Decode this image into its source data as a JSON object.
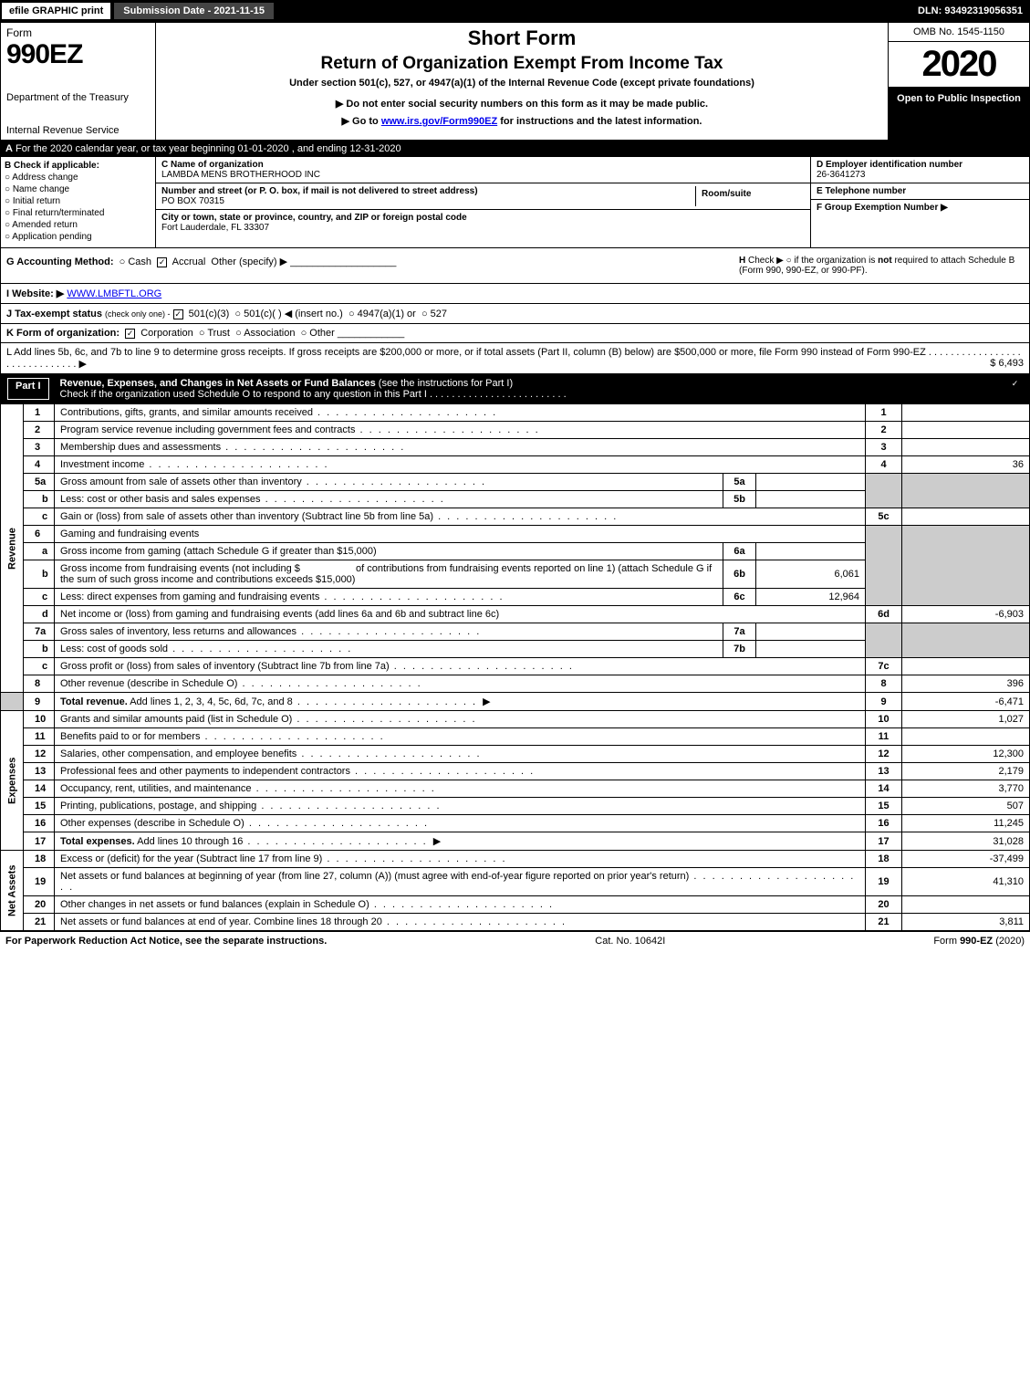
{
  "topbar": {
    "efile": "efile GRAPHIC print",
    "subdate": "Submission Date - 2021-11-15",
    "dln": "DLN: 93492319056351"
  },
  "header": {
    "form_label": "Form",
    "form_number": "990EZ",
    "dept1": "Department of the Treasury",
    "dept2": "Internal Revenue Service",
    "short_form": "Short Form",
    "title": "Return of Organization Exempt From Income Tax",
    "subtitle": "Under section 501(c), 527, or 4947(a)(1) of the Internal Revenue Code (except private foundations)",
    "note": "▶ Do not enter social security numbers on this form as it may be made public.",
    "goto_pre": "▶ Go to ",
    "goto_link": "www.irs.gov/Form990EZ",
    "goto_post": " for instructions and the latest information.",
    "omb": "OMB No. 1545-1150",
    "year": "2020",
    "open": "Open to Public Inspection"
  },
  "row_a": {
    "label": "A",
    "text": "For the 2020 calendar year, or tax year beginning 01-01-2020 , and ending 12-31-2020"
  },
  "section_b": {
    "label": "B",
    "check": "Check if applicable:",
    "items": [
      "Address change",
      "Name change",
      "Initial return",
      "Final return/terminated",
      "Amended return",
      "Application pending"
    ]
  },
  "section_c": {
    "name_label": "C Name of organization",
    "name_value": "LAMBDA MENS BROTHERHOOD INC",
    "addr_label": "Number and street (or P. O. box, if mail is not delivered to street address)",
    "addr_value": "PO BOX 70315",
    "room_label": "Room/suite",
    "city_label": "City or town, state or province, country, and ZIP or foreign postal code",
    "city_value": "Fort Lauderdale, FL  33307"
  },
  "section_def": {
    "d_label": "D Employer identification number",
    "d_value": "26-3641273",
    "e_label": "E Telephone number",
    "e_value": "",
    "f_label": "F Group Exemption Number  ▶",
    "f_value": ""
  },
  "row_g": {
    "label": "G Accounting Method:",
    "cash": "Cash",
    "accrual": "Accrual",
    "other": "Other (specify) ▶"
  },
  "row_h": {
    "label": "H",
    "text1": "Check ▶  ○  if the organization is ",
    "not": "not",
    "text2": " required to attach Schedule B (Form 990, 990-EZ, or 990-PF)."
  },
  "row_i": {
    "label": "I Website: ▶",
    "value": "WWW.LMBFTL.ORG"
  },
  "row_j": {
    "label": "J Tax-exempt status",
    "sub": "(check only one) -",
    "opt1": "501(c)(3)",
    "opt2": "501(c)(  ) ◀ (insert no.)",
    "opt3": "4947(a)(1) or",
    "opt4": "527"
  },
  "row_k": {
    "label": "K Form of organization:",
    "opt1": "Corporation",
    "opt2": "Trust",
    "opt3": "Association",
    "opt4": "Other"
  },
  "row_l": {
    "text": "L Add lines 5b, 6c, and 7b to line 9 to determine gross receipts. If gross receipts are $200,000 or more, or if total assets (Part II, column (B) below) are $500,000 or more, file Form 990 instead of Form 990-EZ",
    "dots": ". . . . . . . . . . . . . . . . . . . . . . . . . . . . . .",
    "arrow": "▶",
    "amount": "$ 6,493"
  },
  "part1": {
    "label": "Part I",
    "title": "Revenue, Expenses, and Changes in Net Assets or Fund Balances",
    "subtitle": "(see the instructions for Part I)",
    "check_text": "Check if the organization used Schedule O to respond to any question in this Part I",
    "dots": ". . . . . . . . . . . . . . . . . . . . . . . . ."
  },
  "revenue_label": "Revenue",
  "expenses_label": "Expenses",
  "netassets_label": "Net Assets",
  "lines": {
    "l1": {
      "no": "1",
      "desc": "Contributions, gifts, grants, and similar amounts received",
      "fno": "1",
      "fval": ""
    },
    "l2": {
      "no": "2",
      "desc": "Program service revenue including government fees and contracts",
      "fno": "2",
      "fval": ""
    },
    "l3": {
      "no": "3",
      "desc": "Membership dues and assessments",
      "fno": "3",
      "fval": ""
    },
    "l4": {
      "no": "4",
      "desc": "Investment income",
      "fno": "4",
      "fval": "36"
    },
    "l5a": {
      "no": "5a",
      "desc": "Gross amount from sale of assets other than inventory",
      "ino": "5a",
      "ival": ""
    },
    "l5b": {
      "no": "b",
      "desc": "Less: cost or other basis and sales expenses",
      "ino": "5b",
      "ival": ""
    },
    "l5c": {
      "no": "c",
      "desc": "Gain or (loss) from sale of assets other than inventory (Subtract line 5b from line 5a)",
      "fno": "5c",
      "fval": ""
    },
    "l6": {
      "no": "6",
      "desc": "Gaming and fundraising events"
    },
    "l6a": {
      "no": "a",
      "desc": "Gross income from gaming (attach Schedule G if greater than $15,000)",
      "ino": "6a",
      "ival": ""
    },
    "l6b": {
      "no": "b",
      "desc1": "Gross income from fundraising events (not including $",
      "desc2": "of contributions from fundraising events reported on line 1) (attach Schedule G if the sum of such gross income and contributions exceeds $15,000)",
      "ino": "6b",
      "ival": "6,061"
    },
    "l6c": {
      "no": "c",
      "desc": "Less: direct expenses from gaming and fundraising events",
      "ino": "6c",
      "ival": "12,964"
    },
    "l6d": {
      "no": "d",
      "desc": "Net income or (loss) from gaming and fundraising events (add lines 6a and 6b and subtract line 6c)",
      "fno": "6d",
      "fval": "-6,903"
    },
    "l7a": {
      "no": "7a",
      "desc": "Gross sales of inventory, less returns and allowances",
      "ino": "7a",
      "ival": ""
    },
    "l7b": {
      "no": "b",
      "desc": "Less: cost of goods sold",
      "ino": "7b",
      "ival": ""
    },
    "l7c": {
      "no": "c",
      "desc": "Gross profit or (loss) from sales of inventory (Subtract line 7b from line 7a)",
      "fno": "7c",
      "fval": ""
    },
    "l8": {
      "no": "8",
      "desc": "Other revenue (describe in Schedule O)",
      "fno": "8",
      "fval": "396"
    },
    "l9": {
      "no": "9",
      "desc": "Total revenue.",
      "desc2": " Add lines 1, 2, 3, 4, 5c, 6d, 7c, and 8",
      "fno": "9",
      "fval": "-6,471"
    },
    "l10": {
      "no": "10",
      "desc": "Grants and similar amounts paid (list in Schedule O)",
      "fno": "10",
      "fval": "1,027"
    },
    "l11": {
      "no": "11",
      "desc": "Benefits paid to or for members",
      "fno": "11",
      "fval": ""
    },
    "l12": {
      "no": "12",
      "desc": "Salaries, other compensation, and employee benefits",
      "fno": "12",
      "fval": "12,300"
    },
    "l13": {
      "no": "13",
      "desc": "Professional fees and other payments to independent contractors",
      "fno": "13",
      "fval": "2,179"
    },
    "l14": {
      "no": "14",
      "desc": "Occupancy, rent, utilities, and maintenance",
      "fno": "14",
      "fval": "3,770"
    },
    "l15": {
      "no": "15",
      "desc": "Printing, publications, postage, and shipping",
      "fno": "15",
      "fval": "507"
    },
    "l16": {
      "no": "16",
      "desc": "Other expenses (describe in Schedule O)",
      "fno": "16",
      "fval": "11,245"
    },
    "l17": {
      "no": "17",
      "desc": "Total expenses.",
      "desc2": " Add lines 10 through 16",
      "fno": "17",
      "fval": "31,028"
    },
    "l18": {
      "no": "18",
      "desc": "Excess or (deficit) for the year (Subtract line 17 from line 9)",
      "fno": "18",
      "fval": "-37,499"
    },
    "l19": {
      "no": "19",
      "desc": "Net assets or fund balances at beginning of year (from line 27, column (A)) (must agree with end-of-year figure reported on prior year's return)",
      "fno": "19",
      "fval": "41,310"
    },
    "l20": {
      "no": "20",
      "desc": "Other changes in net assets or fund balances (explain in Schedule O)",
      "fno": "20",
      "fval": ""
    },
    "l21": {
      "no": "21",
      "desc": "Net assets or fund balances at end of year. Combine lines 18 through 20",
      "fno": "21",
      "fval": "3,811"
    }
  },
  "footer": {
    "left": "For Paperwork Reduction Act Notice, see the separate instructions.",
    "mid": "Cat. No. 10642I",
    "right_pre": "Form ",
    "right_bold": "990-EZ",
    "right_post": " (2020)"
  }
}
